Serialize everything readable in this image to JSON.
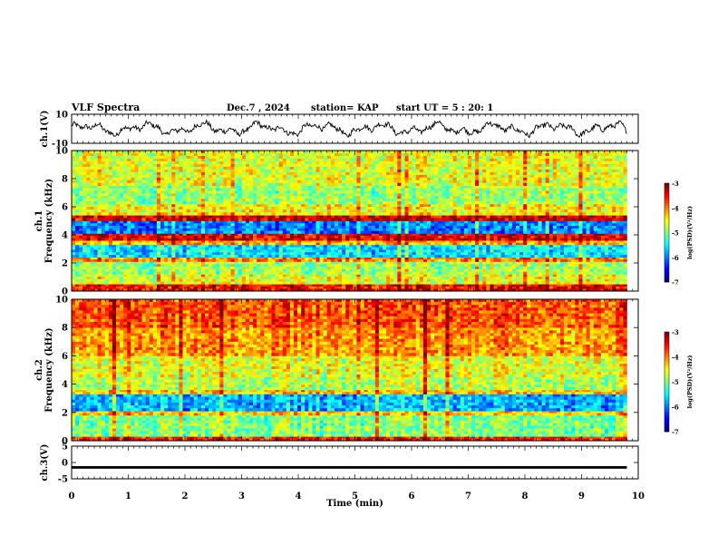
{
  "header": {
    "title": "VLF Spectra",
    "date": "Dec.7 , 2024",
    "station": "station= KAP",
    "start": "start  UT =  5 : 20: 1"
  },
  "chart_data": [
    {
      "type": "line",
      "panel": "ch1-waveform",
      "ylabel": "ch.1(V)",
      "ylim": [
        -10,
        10
      ],
      "yticks": [
        "10",
        "-10"
      ],
      "x_range_min": [
        0,
        9.8
      ],
      "description_series": "voltage trace",
      "approx_envelope": [
        -5,
        5
      ]
    },
    {
      "type": "heatmap",
      "panel": "ch1-spectrogram",
      "ylabel_top": "ch.1",
      "ylabel": "Frequency  (kHz)",
      "ylim": [
        0,
        10
      ],
      "yticks": [
        "0",
        "2",
        "4",
        "6",
        "8",
        "10"
      ],
      "x_range_min": [
        0,
        9.8
      ],
      "colorbar": {
        "label": "log(PSD)(V²/Hz)",
        "range": [
          -7,
          -3
        ],
        "ticks": [
          "-3",
          "-4",
          "-5",
          "-6",
          "-7"
        ]
      },
      "bands": [
        {
          "from": 0.0,
          "to": 0.5,
          "level": -3.5
        },
        {
          "from": 0.5,
          "to": 1.2,
          "level": -4.6
        },
        {
          "from": 1.2,
          "to": 2.1,
          "level": -4.9
        },
        {
          "from": 2.1,
          "to": 2.4,
          "level": -4.0
        },
        {
          "from": 2.4,
          "to": 3.3,
          "level": -5.6
        },
        {
          "from": 3.3,
          "to": 3.6,
          "level": -4.2
        },
        {
          "from": 3.6,
          "to": 4.1,
          "level": -3.4
        },
        {
          "from": 4.1,
          "to": 5.0,
          "level": -6.0
        },
        {
          "from": 5.0,
          "to": 5.4,
          "level": -3.3
        },
        {
          "from": 5.4,
          "to": 6.2,
          "level": -4.5
        },
        {
          "from": 6.2,
          "to": 7.5,
          "level": -4.9
        },
        {
          "from": 7.5,
          "to": 10.0,
          "level": -4.6
        }
      ]
    },
    {
      "type": "heatmap",
      "panel": "ch2-spectrogram",
      "ylabel_top": "ch.2",
      "ylabel": "Frequency  (kHz)",
      "ylim": [
        0,
        10
      ],
      "yticks": [
        "0",
        "2",
        "4",
        "6",
        "8",
        "10"
      ],
      "x_range_min": [
        0,
        9.8
      ],
      "colorbar": {
        "label": "log(PSD)(V²/Hz)",
        "range": [
          -7,
          -3
        ],
        "ticks": [
          "-3",
          "-4",
          "-5",
          "-6",
          "-7"
        ]
      },
      "bands": [
        {
          "from": 0.0,
          "to": 0.3,
          "level": -3.6
        },
        {
          "from": 0.3,
          "to": 1.8,
          "level": -5.0
        },
        {
          "from": 1.8,
          "to": 2.1,
          "level": -4.3
        },
        {
          "from": 2.1,
          "to": 3.3,
          "level": -5.8
        },
        {
          "from": 3.3,
          "to": 3.6,
          "level": -4.3
        },
        {
          "from": 3.6,
          "to": 4.5,
          "level": -4.8
        },
        {
          "from": 4.5,
          "to": 6.0,
          "level": -4.6
        },
        {
          "from": 6.0,
          "to": 8.0,
          "level": -4.1
        },
        {
          "from": 8.0,
          "to": 10.0,
          "level": -3.8
        }
      ]
    },
    {
      "type": "line",
      "panel": "ch3-waveform",
      "ylabel": "ch.3(V)",
      "ylim": [
        -5,
        5
      ],
      "yticks": [
        "5",
        "0",
        "-5"
      ],
      "x_range_min": [
        0,
        9.8
      ],
      "band": [
        -1.9,
        -1.1
      ]
    }
  ],
  "xaxis": {
    "label": "Time  (min)",
    "lim": [
      0,
      10
    ],
    "ticks": [
      "0",
      "1",
      "2",
      "3",
      "4",
      "5",
      "6",
      "7",
      "8",
      "9",
      "10"
    ]
  },
  "colors": {
    "trace": "#000000",
    "axis": "#000000"
  }
}
